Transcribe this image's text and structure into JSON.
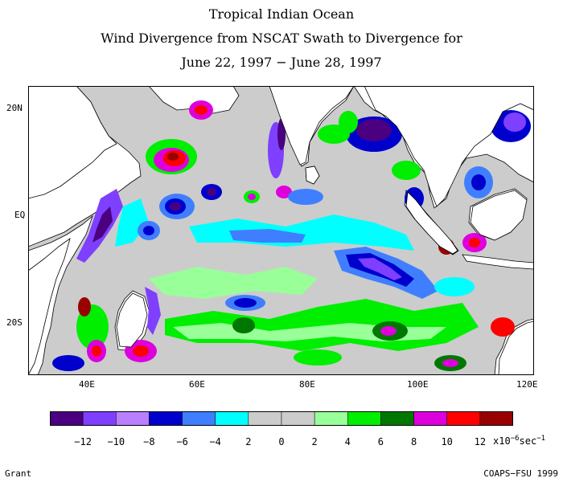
{
  "title": {
    "line1": "Tropical Indian Ocean",
    "line2": "Wind Divergence from NSCAT Swath to Divergence for",
    "line3": "June 22, 1997 − June 28, 1997"
  },
  "axes": {
    "lat_labels": [
      "20N",
      "EQ",
      "20S"
    ],
    "lon_labels": [
      "40E",
      "60E",
      "80E",
      "100E",
      "120E"
    ]
  },
  "colorbar": {
    "colors": [
      "#4b0082",
      "#7f3fff",
      "#b97fff",
      "#0000cd",
      "#3f7fff",
      "#00ffff",
      "#cccccc",
      "#cccccc",
      "#99ff99",
      "#00ee00",
      "#007700",
      "#dd00dd",
      "#ff0000",
      "#990000"
    ],
    "labels": [
      "−12",
      "−10",
      "−8",
      "−6",
      "−4",
      "2",
      "0",
      "2",
      "4",
      "6",
      "8",
      "10",
      "12"
    ],
    "units_prefix": "x10",
    "units_exp": "−6",
    "units_suffix": "sec",
    "units_exp2": "−1"
  },
  "credits": {
    "left": "Grant",
    "right": "COAPS−FSU 1999"
  }
}
